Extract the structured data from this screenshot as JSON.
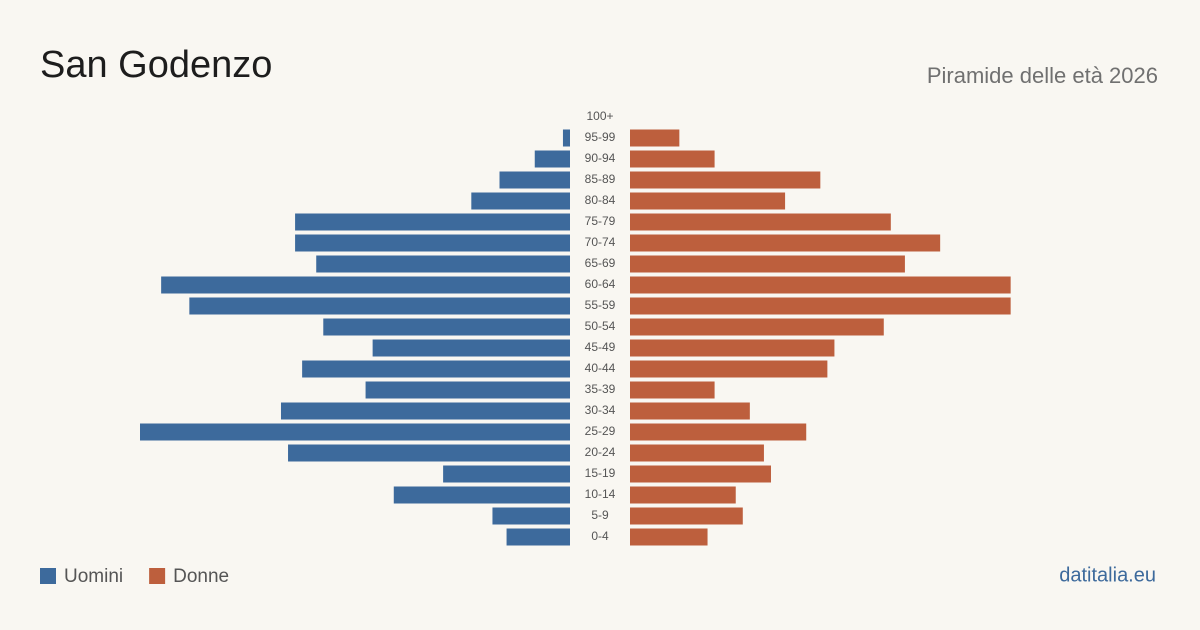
{
  "chart_data": {
    "type": "pyramid",
    "title": "San Godenzo",
    "subtitle": "Piramide delle età 2026",
    "source": "datitalia.eu",
    "categories": [
      "100+",
      "95-99",
      "90-94",
      "85-89",
      "80-84",
      "75-79",
      "70-74",
      "65-69",
      "60-64",
      "55-59",
      "50-54",
      "45-49",
      "40-44",
      "35-39",
      "30-34",
      "25-29",
      "20-24",
      "15-19",
      "10-14",
      "5-9",
      "0-4"
    ],
    "series": [
      {
        "name": "Uomini",
        "color": "#3d6a9c",
        "values": [
          0,
          1,
          5,
          10,
          14,
          39,
          39,
          36,
          58,
          54,
          35,
          28,
          38,
          29,
          41,
          61,
          40,
          18,
          25,
          11,
          9
        ]
      },
      {
        "name": "Donne",
        "color": "#bd5f3d",
        "values": [
          0,
          7,
          12,
          27,
          22,
          37,
          44,
          39,
          54,
          54,
          36,
          29,
          28,
          12,
          17,
          25,
          19,
          20,
          15,
          16,
          11
        ]
      }
    ]
  }
}
